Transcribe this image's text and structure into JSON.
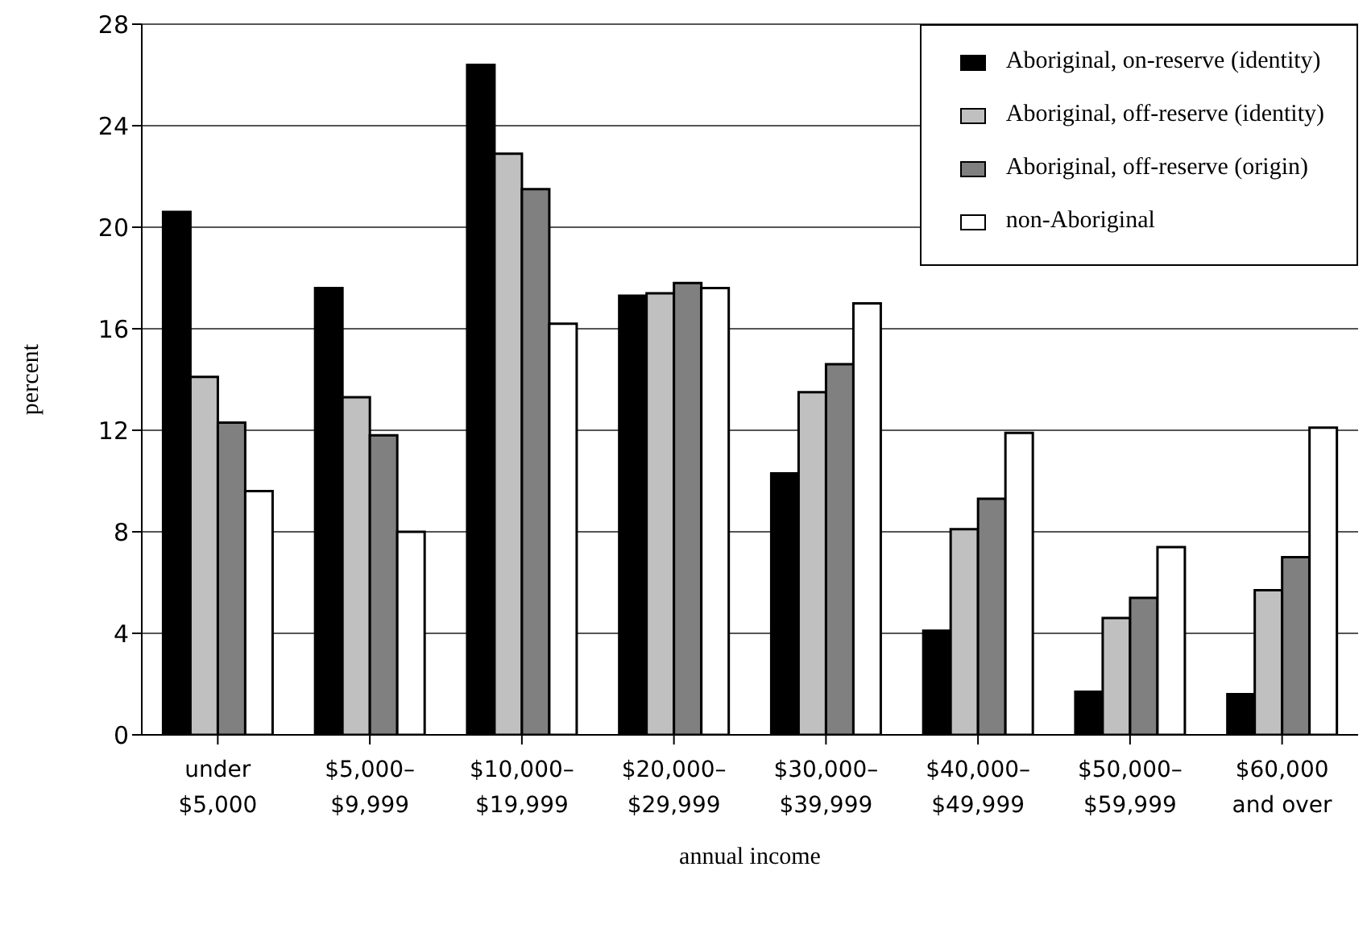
{
  "chart_data": {
    "type": "bar",
    "xlabel": "annual income",
    "ylabel": "percent",
    "categories": [
      "under\n$5,000",
      "$5,000–\n$9,999",
      "$10,000–\n$19,999",
      "$20,000–\n$29,999",
      "$30,000–\n$39,999",
      "$40,000–\n$49,999",
      "$50,000–\n$59,999",
      "$60,000\nand over"
    ],
    "series": [
      {
        "name": "Aboriginal, on-reserve (identity)",
        "color": "#000000",
        "values": [
          20.6,
          17.6,
          26.4,
          17.3,
          10.3,
          4.1,
          1.7,
          1.6
        ]
      },
      {
        "name": "Aboriginal, off-reserve (identity)",
        "color": "#c0c0c0",
        "values": [
          14.1,
          13.3,
          22.9,
          17.4,
          13.5,
          8.1,
          4.6,
          5.7
        ]
      },
      {
        "name": "Aboriginal, off-reserve (origin)",
        "color": "#808080",
        "values": [
          12.3,
          11.8,
          21.5,
          17.8,
          14.6,
          9.3,
          5.4,
          7.0
        ]
      },
      {
        "name": "non-Aboriginal",
        "color": "#ffffff",
        "values": [
          9.6,
          8.0,
          16.2,
          17.6,
          17.0,
          11.9,
          7.4,
          12.1
        ]
      }
    ],
    "ylim": [
      0,
      28
    ],
    "yticks": [
      0,
      4,
      8,
      12,
      16,
      20,
      24,
      28
    ],
    "grid": "y",
    "legend": "top right"
  }
}
